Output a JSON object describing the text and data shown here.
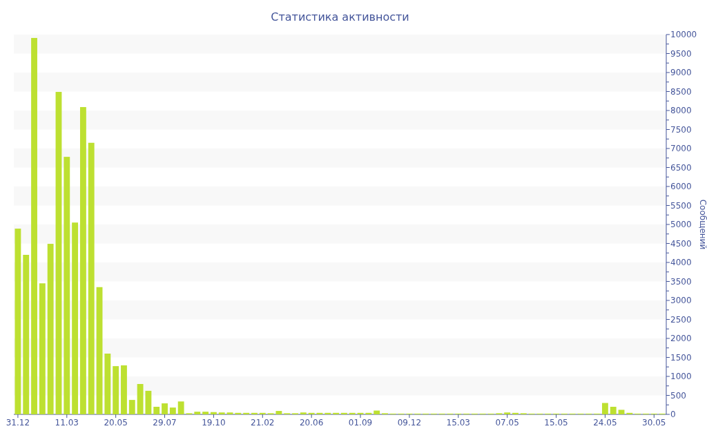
{
  "chart_data": {
    "type": "bar",
    "title": "Статистика активности",
    "y2label": "Сообщений",
    "categories": [
      "31.12",
      null,
      null,
      null,
      null,
      null,
      "11.03",
      null,
      null,
      null,
      null,
      null,
      "20.05",
      null,
      null,
      null,
      null,
      null,
      "29.07",
      null,
      null,
      null,
      null,
      null,
      "19.10",
      null,
      null,
      null,
      null,
      null,
      "21.02",
      null,
      null,
      null,
      null,
      null,
      "20.06",
      null,
      null,
      null,
      null,
      null,
      "01.09",
      null,
      null,
      null,
      null,
      null,
      "09.12",
      null,
      null,
      null,
      null,
      null,
      "15.03",
      null,
      null,
      null,
      null,
      null,
      "07.05",
      null,
      null,
      null,
      null,
      null,
      "15.05",
      null,
      null,
      null,
      null,
      null,
      "24.05",
      null,
      null,
      null,
      null,
      null,
      "30.05",
      null
    ],
    "series": [
      {
        "color": "#bde031",
        "axis": "y2",
        "values": [
          4890,
          4200,
          9910,
          3450,
          4490,
          8490,
          6780,
          5050,
          8090,
          7150,
          3350,
          1600,
          1270,
          1290,
          380,
          800,
          620,
          200,
          290,
          180,
          340,
          30,
          70,
          70,
          60,
          50,
          50,
          40,
          40,
          40,
          40,
          30,
          90,
          30,
          30,
          50,
          40,
          40,
          40,
          40,
          40,
          40,
          40,
          40,
          100,
          30,
          20,
          20,
          20,
          20,
          20,
          20,
          20,
          20,
          20,
          20,
          20,
          20,
          20,
          30,
          50,
          40,
          30,
          20,
          20,
          20,
          20,
          20,
          20,
          20,
          20,
          20,
          300,
          200,
          120,
          40,
          20,
          20,
          20,
          20
        ]
      }
    ],
    "y2lim": [
      0,
      10000
    ],
    "y2ticks": [
      0,
      500,
      1000,
      1500,
      2000,
      2500,
      3000,
      3500,
      4000,
      4500,
      5000,
      5500,
      6000,
      6500,
      7000,
      7500,
      8000,
      8500,
      9000,
      9500,
      10000
    ],
    "grid": "y2"
  }
}
